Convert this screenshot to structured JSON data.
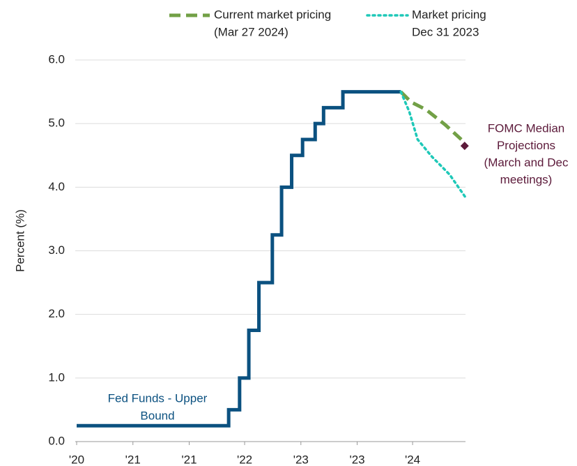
{
  "chart_data": {
    "type": "line",
    "y_label": "Percent (%)",
    "xlim": [
      2020.33,
      2024.96
    ],
    "ylim": [
      0,
      6
    ],
    "xticks": [
      {
        "value": 2020.33,
        "label": "'20"
      },
      {
        "value": 2021.0,
        "label": "'21"
      },
      {
        "value": 2021.67,
        "label": "'21"
      },
      {
        "value": 2022.33,
        "label": "'22"
      },
      {
        "value": 2023.0,
        "label": "'23"
      },
      {
        "value": 2023.67,
        "label": "'23"
      },
      {
        "value": 2024.33,
        "label": "'24"
      }
    ],
    "yticks": [
      {
        "value": 0,
        "label": "0.0"
      },
      {
        "value": 1,
        "label": "1.0"
      },
      {
        "value": 2,
        "label": "2.0"
      },
      {
        "value": 3,
        "label": "3.0"
      },
      {
        "value": 4,
        "label": "4.0"
      },
      {
        "value": 5,
        "label": "5.0"
      },
      {
        "value": 6,
        "label": "6.0"
      }
    ],
    "grid": true,
    "series": [
      {
        "name": [
          "Fed Funds - Upper",
          "Bound"
        ],
        "color": "#0b5180",
        "style": "step",
        "x": [
          2020.33,
          2022.14,
          2022.27,
          2022.38,
          2022.5,
          2022.66,
          2022.77,
          2022.89,
          2023.02,
          2023.17,
          2023.27,
          2023.5,
          2024.19
        ],
        "values": [
          0.25,
          0.5,
          1.0,
          1.75,
          2.5,
          3.25,
          4.0,
          4.5,
          4.75,
          5.0,
          5.25,
          5.5,
          5.5
        ]
      },
      {
        "name": [
          "Current market pricing",
          "(Mar 27 2024)"
        ],
        "color": "#72a046",
        "style": "dashed",
        "x": [
          2024.19,
          2024.31,
          2024.49,
          2024.72,
          2024.91
        ],
        "values": [
          5.5,
          5.34,
          5.22,
          4.98,
          4.75
        ]
      },
      {
        "name": [
          "Market pricing",
          "Dec 31 2023"
        ],
        "color": "#1ec8b8",
        "style": "dotted",
        "x": [
          2024.19,
          2024.29,
          2024.39,
          2024.56,
          2024.77,
          2024.96
        ],
        "values": [
          5.5,
          5.19,
          4.75,
          4.48,
          4.2,
          3.84
        ]
      }
    ],
    "marker": {
      "label": [
        "FOMC Median",
        "Projections",
        "(March and Dec",
        "meetings)"
      ],
      "color": "#5c1a3a",
      "x": 2024.95,
      "value": 4.65
    }
  }
}
